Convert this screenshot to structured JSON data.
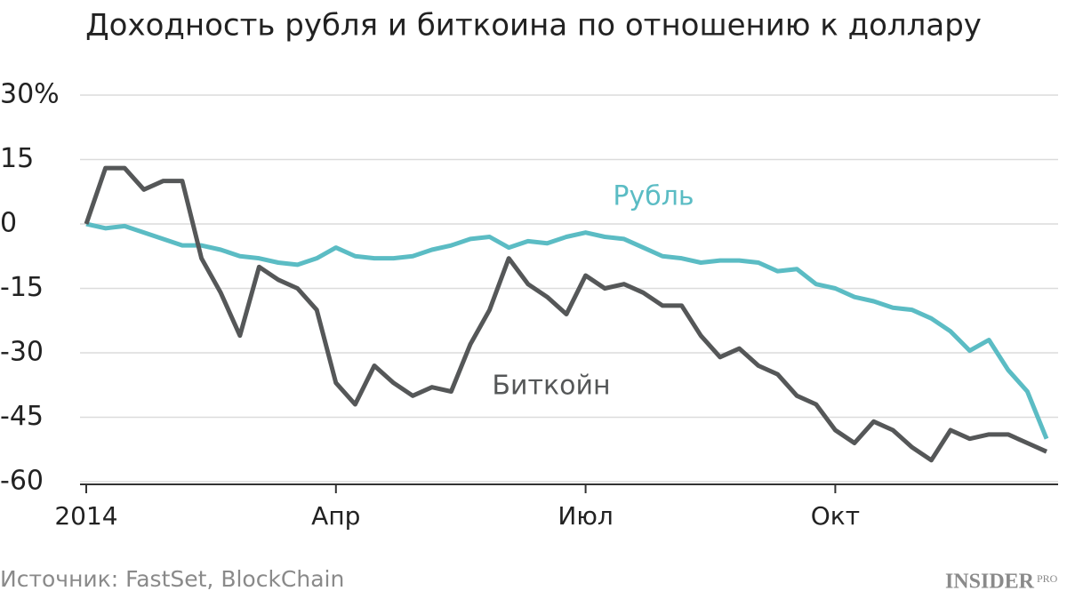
{
  "chart_data": {
    "type": "line",
    "title": "Доходность рубля и биткоина по отношению к доллару",
    "source": "Источник: FastSet, BlockChain",
    "logo": "INSIDER",
    "logo_suffix": "PRO",
    "categories": [
      "2014",
      null,
      null,
      null,
      null,
      null,
      null,
      null,
      null,
      null,
      null,
      null,
      null,
      "Апр",
      null,
      null,
      null,
      null,
      null,
      null,
      null,
      null,
      null,
      null,
      null,
      null,
      "Июл",
      null,
      null,
      null,
      null,
      null,
      null,
      null,
      null,
      null,
      null,
      null,
      null,
      "Окт",
      null,
      null,
      null,
      null,
      null,
      null,
      null,
      null,
      null,
      null,
      null
    ],
    "series": [
      {
        "name": "Рубль",
        "color": "#5bbcc4",
        "values": [
          0,
          -1,
          -0.5,
          -2,
          -3.5,
          -5,
          -5,
          -6,
          -7.5,
          -8,
          -9,
          -9.5,
          -8,
          -5.5,
          -7.5,
          -8,
          -8,
          -7.5,
          -6,
          -5,
          -3.5,
          -3,
          -5.5,
          -4,
          -4.5,
          -3,
          -2,
          -3,
          -3.5,
          -5.5,
          -7.5,
          -8,
          -9,
          -8.5,
          -8.5,
          -9,
          -11,
          -10.5,
          -14,
          -15,
          -17,
          -18,
          -19.5,
          -20,
          -22,
          -25,
          -29.5,
          -27,
          -34,
          -39,
          -50
        ]
      },
      {
        "name": "Биткойн",
        "color": "#555758",
        "values": [
          0,
          13,
          13,
          8,
          10,
          10,
          -8,
          -16,
          -26,
          -10,
          -13,
          -15,
          -20,
          -37,
          -42,
          -33,
          -37,
          -40,
          -38,
          -39,
          -28,
          -20,
          -8,
          -14,
          -17,
          -21,
          -12,
          -15,
          -14,
          -16,
          -19,
          -19,
          -26,
          -31,
          -29,
          -33,
          -35,
          -40,
          -42,
          -48,
          -51,
          -46,
          -48,
          -52,
          -55,
          -48,
          -50,
          -49,
          -49,
          -51,
          -53
        ]
      }
    ],
    "ylim": [
      -60,
      30
    ],
    "yticks": [
      {
        "value": 30,
        "label": "30%"
      },
      15,
      0,
      -15,
      -30,
      -45,
      -60
    ],
    "grid": true
  }
}
